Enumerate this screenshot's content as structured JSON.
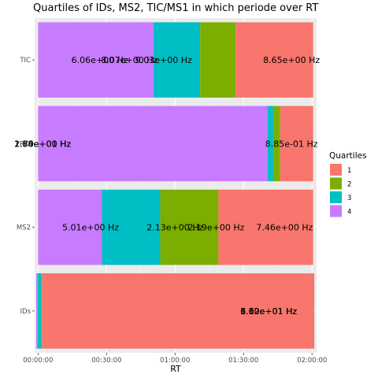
{
  "chart_data": {
    "type": "bar",
    "orientation": "horizontal",
    "stacked": true,
    "title": "Quartiles of IDs, MS2, TIC/MS1 in which periode over RT",
    "xlabel": "RT",
    "ylabel": "",
    "x_ticks": [
      "00:00:00",
      "00:30:00",
      "01:00:00",
      "01:30:00",
      "02:00:00"
    ],
    "x_tick_minutes": [
      0,
      30,
      60,
      90,
      120
    ],
    "xlim_minutes": [
      -1.5,
      122
    ],
    "categories": [
      "IDs",
      "MS2",
      "RIC",
      "TIC"
    ],
    "grid": true,
    "legend": {
      "title": "Quartiles",
      "position": "right",
      "entries": [
        {
          "label": "1",
          "color": "#F8766D"
        },
        {
          "label": "2",
          "color": "#7CAE00"
        },
        {
          "label": "3",
          "color": "#00BFC4"
        },
        {
          "label": "4",
          "color": "#C77CFF"
        }
      ]
    },
    "series": [
      {
        "name": "4",
        "color": "#C77CFF",
        "values": [
          [
            -0.8,
            -0.1
          ],
          [
            0,
            28
          ],
          [
            0,
            100.5
          ],
          [
            0,
            50.5
          ]
        ]
      },
      {
        "name": "3",
        "color": "#00BFC4",
        "values": [
          [
            -0.1,
            1.3
          ],
          [
            28,
            53.5
          ],
          [
            100.5,
            103
          ],
          [
            50.5,
            71
          ]
        ]
      },
      {
        "name": "2",
        "color": "#7CAE00",
        "values": [
          [
            1.3,
            1.7
          ],
          [
            53.5,
            79
          ],
          [
            103,
            106
          ],
          [
            71,
            86.5
          ]
        ]
      },
      {
        "name": "1",
        "color": "#F8766D",
        "values": [
          [
            1.7,
            121
          ],
          [
            79,
            120.5
          ],
          [
            106,
            120.5
          ],
          [
            86.5,
            120.5
          ]
        ]
      }
    ],
    "bar_labels": [
      {
        "category": "IDs",
        "at_minutes": 101,
        "text": "3.62e+01  Hz"
      },
      {
        "category": "IDs",
        "at_minutes": 101,
        "text": "6.10e+01  Hz"
      },
      {
        "category": "IDs",
        "at_minutes": 101,
        "text": "1.02e+01  Hz"
      },
      {
        "category": "MS2",
        "at_minutes": 23,
        "text": "5.01e+00  Hz"
      },
      {
        "category": "MS2",
        "at_minutes": 60,
        "text": "2.13e+00  Hz"
      },
      {
        "category": "MS2",
        "at_minutes": 78,
        "text": "2.19e+00  Hz"
      },
      {
        "category": "MS2",
        "at_minutes": 108,
        "text": "7.46e+00  Hz"
      },
      {
        "category": "RIC",
        "at_minutes": 2,
        "text": "1.58e+01  Hz"
      },
      {
        "category": "RIC",
        "at_minutes": 2,
        "text": "2.74e+00  Hz"
      },
      {
        "category": "RIC",
        "at_minutes": 2,
        "text": "1.60e+00  Hz"
      },
      {
        "category": "RIC",
        "at_minutes": 111,
        "text": "8.85e-01  Hz"
      },
      {
        "category": "TIC",
        "at_minutes": 27,
        "text": "6.06e+00  Hz"
      },
      {
        "category": "TIC",
        "at_minutes": 40,
        "text": "8.07e+00  Hz"
      },
      {
        "category": "TIC",
        "at_minutes": 55,
        "text": "9.03e+00  Hz"
      },
      {
        "category": "TIC",
        "at_minutes": 111,
        "text": "8.65e+00  Hz"
      }
    ]
  }
}
